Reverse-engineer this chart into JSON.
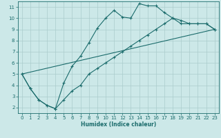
{
  "xlabel": "Humidex (Indice chaleur)",
  "bg_color": "#cce8e8",
  "grid_color": "#aacccc",
  "line_color": "#1a6b6b",
  "xlim": [
    -0.5,
    23.5
  ],
  "ylim": [
    1.5,
    11.5
  ],
  "xticks": [
    0,
    1,
    2,
    3,
    4,
    5,
    6,
    7,
    8,
    9,
    10,
    11,
    12,
    13,
    14,
    15,
    16,
    17,
    18,
    19,
    20,
    21,
    22,
    23
  ],
  "yticks": [
    2,
    3,
    4,
    5,
    6,
    7,
    8,
    9,
    10,
    11
  ],
  "line1_x": [
    0,
    1,
    2,
    3,
    4,
    5,
    6,
    7,
    8,
    9,
    10,
    11,
    12,
    13,
    14,
    15,
    16,
    17,
    18,
    19,
    20,
    21,
    22,
    23
  ],
  "line1_y": [
    5.0,
    3.7,
    2.7,
    2.2,
    1.9,
    2.7,
    3.5,
    4.0,
    5.0,
    5.5,
    6.0,
    6.5,
    7.0,
    7.5,
    8.0,
    8.5,
    9.0,
    9.5,
    10.0,
    9.5,
    9.5,
    9.5,
    9.5,
    9.0
  ],
  "line2_x": [
    0,
    1,
    2,
    3,
    4,
    5,
    6,
    7,
    8,
    9,
    10,
    11,
    12,
    13,
    14,
    15,
    16,
    17,
    18,
    19,
    20,
    21,
    22,
    23
  ],
  "line2_y": [
    5.0,
    3.7,
    2.7,
    2.2,
    1.9,
    4.2,
    5.7,
    6.6,
    7.8,
    9.1,
    10.0,
    10.7,
    10.1,
    10.0,
    11.3,
    11.1,
    11.1,
    10.5,
    10.0,
    9.8,
    9.5,
    9.5,
    9.5,
    9.0
  ],
  "line3_x": [
    0,
    23
  ],
  "line3_y": [
    5.0,
    9.0
  ]
}
